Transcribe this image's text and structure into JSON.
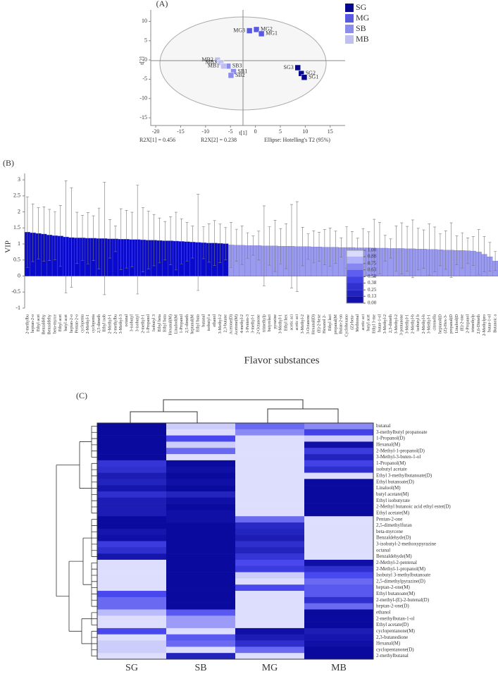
{
  "chart_data": [
    {
      "type": "scatter",
      "panel": "(A)",
      "xlabel": "t[1]",
      "ylabel": "t[2]",
      "xlim": [
        -21,
        18
      ],
      "ylim": [
        -17,
        13
      ],
      "xticks": [
        -20,
        -15,
        -10,
        -5,
        0,
        5,
        10,
        15
      ],
      "yticks": [
        -15,
        -10,
        -5,
        0,
        5,
        10
      ],
      "notes": [
        "R2X[1] = 0.456",
        "R2X[2] = 0.238",
        "Ellipse: Hotelling's T2 (95%)"
      ],
      "series": [
        {
          "name": "SG",
          "color": "#08088f",
          "labels": [
            "SG3",
            "SG2",
            "SG1"
          ],
          "x": [
            8.5,
            9.2,
            9.8
          ],
          "y": [
            -2,
            -3.5,
            -4.5
          ]
        },
        {
          "name": "MG",
          "color": "#5a5ae0",
          "labels": [
            "MG3",
            "MG2",
            "MG1"
          ],
          "x": [
            -1.2,
            0.2,
            1.2
          ],
          "y": [
            7.6,
            7.9,
            6.8
          ]
        },
        {
          "name": "SB",
          "color": "#8c8cea",
          "labels": [
            "SB3",
            "SB1",
            "SB2"
          ],
          "x": [
            -5.5,
            -4.4,
            -4.9
          ],
          "y": [
            -1.6,
            -3,
            -4
          ]
        },
        {
          "name": "MB",
          "color": "#c0c0ee",
          "labels": [
            "MB2",
            "MB3",
            "MB1"
          ],
          "x": [
            -7.6,
            -6.9,
            -6.4
          ],
          "y": [
            0,
            -0.7,
            -1.6
          ]
        }
      ]
    },
    {
      "type": "bar",
      "panel": "(B)",
      "xlabel": "Flavor substances",
      "ylabel": "VIP",
      "ylim": [
        -1,
        3.2
      ],
      "yticks": [
        -1,
        -0.5,
        0,
        0.5,
        1,
        1.5,
        2,
        2.5,
        3
      ],
      "categories": [
        "2-methylbu",
        "heptan-2-o",
        "Ethyl acet",
        "Benzaldehy",
        "Benzaldehy",
        "beta-myrce",
        "Ethyl acet",
        "butyl acet",
        "heptan-2-o",
        "Pentan-2-o",
        "cyclopenta",
        "2-Methyl-1",
        "cyclopenta",
        "2,5-dimeth",
        "Ethyl isob",
        "2-Methyl-1",
        "2-methylbu",
        "3-Methyl-3",
        "octanal",
        "3-isobutyl",
        "3-isobutyl",
        "2-methyl-1",
        "1-Propanol",
        "Isobutyl 3",
        "Ethyl beta",
        "Ethyl buta",
        "Hexanal(M)",
        "Linalool(M",
        "1-Propanol",
        "2,5-dimeth",
        "heptanal(M",
        "Ethyl buta",
        "butanal",
        "isobutyl a",
        "ethanol",
        "3-Methyl-2",
        "2,3-butane",
        "Acetone(D)",
        "Acetone(M)",
        "4-methyl-2",
        "1-Penten-3",
        "3-methyl-1",
        "2-Octanone",
        "trimethylp",
        "butyrolact",
        "pyrazine",
        "3-Methyl-1",
        "Ethyl hex",
        "acetic aci",
        "acetic aci",
        "3-Methyl-2",
        "3-Octanone",
        "Hexanal(D)",
        "(E)-2-hexe",
        "Hexanol 2-",
        "Ethyl lact",
        "propanal(M",
        "Butan-2-on",
        "Cyclohexano",
        "(Z)-beta-",
        "Methional",
        "acetic aci",
        "butyl acet",
        "Ethyl 3-me",
        "butan-1-ol",
        "3-Methyl-2",
        "2,3-dimeth",
        "3-Methyl-2",
        "3-pentanone",
        "3-Methyl-1",
        "2-Methyl-b",
        "isobutyl b",
        "2-Methyl-b",
        "3-Methyl-1",
        "citronella",
        "heptanol(D",
        "(Z)-Hex-3-",
        "propanal(D",
        "Linalool(D",
        "(E)-2-one",
        "2-Propanol",
        "trimethylp",
        "2,6-Dimeth",
        "2-Methylpro",
        "butan-1-ol",
        "Butanoic a"
      ],
      "values": [
        1.37,
        1.35,
        1.33,
        1.31,
        1.28,
        1.26,
        1.25,
        1.22,
        1.2,
        1.19,
        1.19,
        1.18,
        1.18,
        1.17,
        1.17,
        1.16,
        1.16,
        1.15,
        1.15,
        1.14,
        1.14,
        1.13,
        1.12,
        1.12,
        1.11,
        1.1,
        1.1,
        1.09,
        1.08,
        1.07,
        1.06,
        1.05,
        1.04,
        1.03,
        1.03,
        1.02,
        1.01,
        0.97,
        0.96,
        0.96,
        0.95,
        0.95,
        0.95,
        0.94,
        0.94,
        0.94,
        0.93,
        0.93,
        0.93,
        0.92,
        0.92,
        0.92,
        0.91,
        0.91,
        0.9,
        0.9,
        0.9,
        0.89,
        0.89,
        0.89,
        0.88,
        0.88,
        0.88,
        0.87,
        0.87,
        0.87,
        0.86,
        0.86,
        0.86,
        0.85,
        0.85,
        0.84,
        0.84,
        0.83,
        0.83,
        0.82,
        0.81,
        0.81,
        0.8,
        0.8,
        0.79,
        0.78,
        0.75,
        0.68,
        0.6,
        0.47
      ],
      "errors": [
        1.1,
        0.9,
        0.8,
        0.85,
        0.8,
        0.75,
        0.95,
        1.75,
        1.55,
        0.8,
        0.7,
        0.8,
        0.7,
        0.95,
        1.75,
        0.6,
        0.4,
        0.95,
        0.9,
        0.85,
        1.7,
        1.0,
        0.9,
        0.8,
        0.7,
        0.6,
        0.75,
        0.9,
        0.7,
        0.6,
        0.5,
        1.5,
        0.5,
        0.6,
        0.7,
        0.6,
        0.5,
        0.7,
        0.5,
        0.6,
        0.4,
        0.3,
        0.45,
        1.25,
        0.6,
        0.8,
        0.55,
        0.7,
        1.3,
        1.4,
        0.6,
        0.4,
        0.5,
        0.45,
        0.55,
        0.6,
        0.5,
        0.3,
        0.65,
        0.5,
        0.3,
        0.6,
        0.5,
        0.9,
        0.8,
        0.4,
        0.3,
        0.7,
        0.8,
        0.7,
        0.9,
        0.65,
        0.6,
        0.8,
        0.7,
        0.5,
        0.6,
        0.85,
        0.45,
        0.55,
        0.4,
        0.45,
        0.7,
        0.55,
        0.45,
        0.3
      ],
      "colors": [
        "#0a0acc",
        "#0a0acc",
        "#0a0acc",
        "#0a0acc",
        "#0a0acc",
        "#0a0acc",
        "#0a0acc",
        "#0a0acc",
        "#0a0acc",
        "#0a0acc",
        "#0a0acc",
        "#0a0acc",
        "#0a0acc",
        "#0a0acc",
        "#0a0acc",
        "#0a0acc",
        "#0a0acc",
        "#0a0acc",
        "#0a0acc",
        "#0a0acc",
        "#0a0acc",
        "#0a0acc",
        "#0a0acc",
        "#0a0acc",
        "#0a0acc",
        "#0a0acc",
        "#0a0acc",
        "#0a0acc",
        "#0a0acc",
        "#0a0acc",
        "#0a0acc",
        "#0a0acc",
        "#0a0acc",
        "#0a0acc",
        "#0a0acc",
        "#0a0acc",
        "#0a0acc",
        "#9a9aee",
        "#9a9aee",
        "#9a9aee",
        "#9a9aee",
        "#9a9aee",
        "#9a9aee",
        "#9a9aee",
        "#9a9aee",
        "#9a9aee",
        "#9a9aee",
        "#9a9aee",
        "#9a9aee",
        "#9a9aee",
        "#9a9aee",
        "#9a9aee",
        "#9a9aee",
        "#9a9aee",
        "#9a9aee",
        "#9a9aee",
        "#9a9aee",
        "#9a9aee",
        "#9a9aee",
        "#9a9aee",
        "#9a9aee",
        "#9a9aee",
        "#9a9aee",
        "#9a9aee",
        "#9a9aee",
        "#9a9aee",
        "#9a9aee",
        "#9a9aee",
        "#9a9aee",
        "#9a9aee",
        "#9a9aee",
        "#9a9aee",
        "#9a9aee",
        "#9a9aee",
        "#9a9aee",
        "#9a9aee",
        "#9a9aee",
        "#9a9aee",
        "#9a9aee",
        "#9a9aee",
        "#9a9aee",
        "#9a9aee",
        "#9a9aee",
        "#9a9aee",
        "#9a9aee",
        "#9a9aee"
      ]
    },
    {
      "type": "heatmap",
      "panel": "(C)",
      "columns": [
        "SG",
        "SB",
        "MG",
        "MB"
      ],
      "rows": [
        "butanal",
        "3-methylbutyl propanoate",
        "1-Propanol(D)",
        "Hexanal(M)",
        "2-Methyl-1-propanol(D)",
        "3-Methyl-3-buten-1-ol",
        "1-Propanol(M)",
        "isobutyl acetate",
        "Ethyl 3-methylbutanoate(D)",
        "Ethyl butanoate(D)",
        "Linalool(M)",
        "butyl acetate(M)",
        "Ethyl isobutyrate",
        "2-Methyl butanoic acid ethyl ester(D)",
        "Ethyl acetate(M)",
        "Pentan-2-one",
        "2,5-dimethylfuran",
        "beta-myrcene",
        "Benzaldehyde(D)",
        "3-isobutyl-2-methoxypyrazine",
        "octanal",
        "Benzaldehyde(M)",
        "2-Methyl-2-pentenal",
        "2-Methyl-1-propanol(M)",
        "Isobutyl 3-methylbutanoate",
        "2,5-dimethylpyrazine(D)",
        "heptan-2-one(M)",
        "Ethyl butanoate(M)",
        "2-methyl-(E)-2-butenal(D)",
        "heptan-2-one(D)",
        "ethanol",
        "2-methylbutan-1-ol",
        "Ethyl acetate(D)",
        "cyclopentanone(M)",
        "2,3-butanedione",
        "Hexanal(M)",
        "cyclopentanone(D)",
        "2-methylbutanal"
      ],
      "values": [
        [
          0,
          0.9,
          0.6,
          0.7
        ],
        [
          0,
          0.95,
          0.7,
          0.45
        ],
        [
          0,
          0.5,
          0.95,
          0.9
        ],
        [
          0,
          0.9,
          0.95,
          0.05
        ],
        [
          0,
          0.6,
          0.95,
          0.4
        ],
        [
          0,
          0.95,
          0.95,
          0.2
        ],
        [
          0.35,
          0,
          0.95,
          0.45
        ],
        [
          0.3,
          0.05,
          0.95,
          0.3
        ],
        [
          0.15,
          0,
          0.95,
          0.95
        ],
        [
          0.2,
          0.05,
          0.95,
          0
        ],
        [
          0.1,
          0,
          0.95,
          0
        ],
        [
          0.3,
          0.2,
          0.95,
          0
        ],
        [
          0.15,
          0.05,
          0.95,
          0
        ],
        [
          0.15,
          0,
          0.95,
          0
        ],
        [
          0.15,
          0.05,
          0.95,
          0
        ],
        [
          0,
          0.05,
          0.6,
          0.95
        ],
        [
          0,
          0,
          0.25,
          0.95
        ],
        [
          0.1,
          0,
          0.2,
          0.95
        ],
        [
          0.05,
          0,
          0.15,
          0.95
        ],
        [
          0.4,
          0,
          0.3,
          0.95
        ],
        [
          0.3,
          0,
          0.2,
          0.95
        ],
        [
          0.1,
          0,
          0.35,
          0.95
        ],
        [
          0.95,
          0,
          0.5,
          0.05
        ],
        [
          0.95,
          0,
          0.4,
          0.3
        ],
        [
          0.95,
          0,
          0.9,
          0.5
        ],
        [
          0.95,
          0,
          0.95,
          0.6
        ],
        [
          0.95,
          0,
          0.5,
          0.55
        ],
        [
          0.5,
          0,
          0.95,
          0.55
        ],
        [
          0.6,
          0,
          0.95,
          0.3
        ],
        [
          0.6,
          0,
          0.95,
          0.6
        ],
        [
          0.85,
          0.55,
          0.95,
          0
        ],
        [
          0.95,
          0.75,
          0.95,
          0
        ],
        [
          0.95,
          0.75,
          0.95,
          0
        ],
        [
          0.5,
          0.95,
          0.05,
          0.15
        ],
        [
          0.95,
          0.55,
          0.15,
          0.1
        ],
        [
          0.9,
          0.6,
          0.3,
          0.05
        ],
        [
          0.9,
          0.95,
          0.6,
          0
        ],
        [
          0.95,
          0.2,
          0.95,
          0
        ]
      ],
      "colorbar_ticks": [
        {
          "value": 0,
          "label": "0.00"
        },
        {
          "value": 0.13,
          "label": "0.13"
        },
        {
          "value": 0.25,
          "label": "0.25"
        },
        {
          "value": 0.38,
          "label": "0.38"
        },
        {
          "value": 0.5,
          "label": "0.50"
        },
        {
          "value": 0.63,
          "label": "0.63"
        },
        {
          "value": 0.75,
          "label": "0.75"
        },
        {
          "value": 0.88,
          "label": "0.88"
        },
        {
          "value": 1,
          "label": "1.00"
        }
      ],
      "colormap": [
        "#0a0a9e",
        "#4848ee",
        "#eeeeff"
      ]
    }
  ]
}
